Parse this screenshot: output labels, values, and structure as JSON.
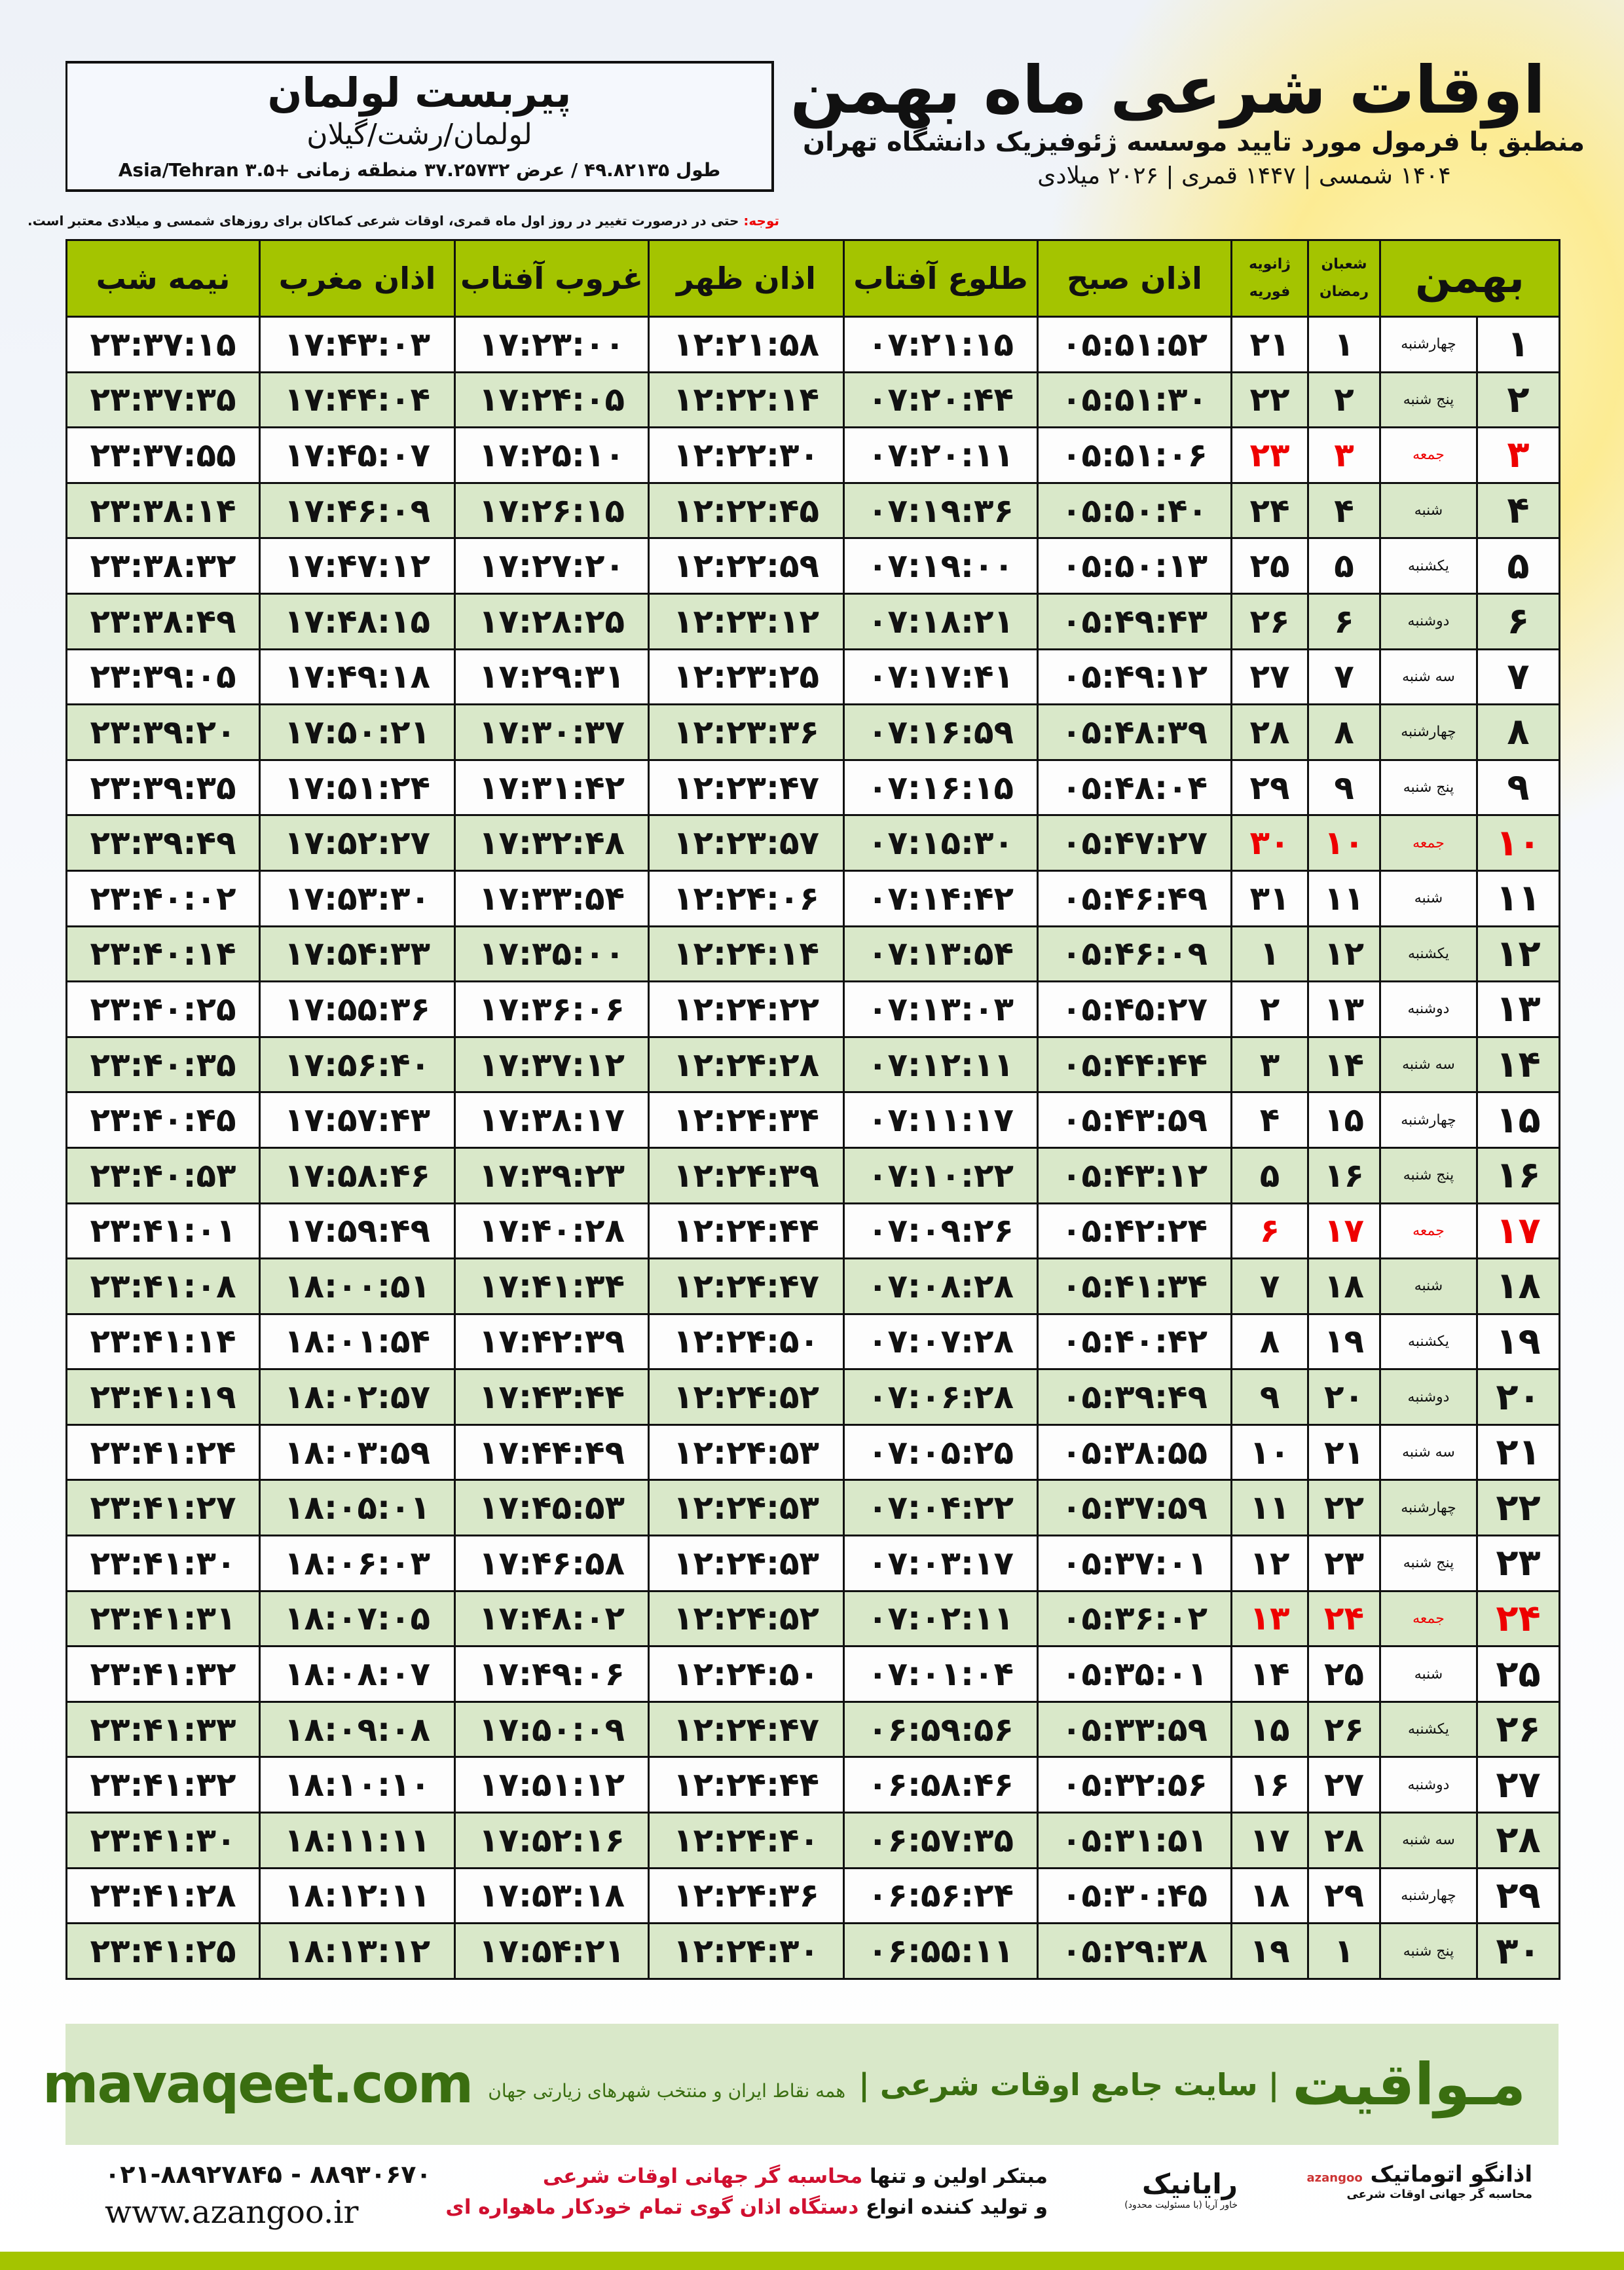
{
  "location": {
    "name": "پیربست لولمان",
    "path": "لولمان/رشت/گیلان",
    "coords": "طول ۴۹.۸۲۱۳۵ / عرض ۳۷.۲۵۷۳۲ منطقه زمانی +۳.۵ Asia/Tehran"
  },
  "title": {
    "main": "اوقات شرعی ماه بهمن",
    "subtitle": "منطبق با فرمول مورد تایید موسسه ژئوفیزیک دانشگاه تهران",
    "dates": "۱۴۰۴ شمسی | ۱۴۴۷ قمری | ۲۰۲۶ میلادی"
  },
  "note": {
    "label": "توجه:",
    "text": " حتی در درصورت تغییر در روز اول ماه قمری، اوقات شرعی کماکان برای روزهای شمسی و میلادی معتبر است."
  },
  "colors": {
    "header": "#a4c400",
    "row_alt": "#d9e8c9",
    "friday": "#e00000",
    "brand": "#3a6e10"
  },
  "table": {
    "headers": {
      "month": "بهمن",
      "hijri_top": "شعبان",
      "hijri_bottom": "رمضان",
      "greg_top": "ژانویه",
      "greg_bottom": "فوریه",
      "fajr": "اذان صبح",
      "sunrise": "طلوع آفتاب",
      "dhuhr": "اذان ظهر",
      "sunset": "غروب آفتاب",
      "maghrib": "اذان مغرب",
      "midnight": "نیمه شب"
    },
    "rows": [
      [
        "۱",
        "چهارشنبه",
        "۱",
        "۲۱",
        "۰۵:۵۱:۵۲",
        "۰۷:۲۱:۱۵",
        "۱۲:۲۱:۵۸",
        "۱۷:۲۳:۰۰",
        "۱۷:۴۳:۰۳",
        "۲۳:۳۷:۱۵"
      ],
      [
        "۲",
        "پنج شنبه",
        "۲",
        "۲۲",
        "۰۵:۵۱:۳۰",
        "۰۷:۲۰:۴۴",
        "۱۲:۲۲:۱۴",
        "۱۷:۲۴:۰۵",
        "۱۷:۴۴:۰۴",
        "۲۳:۳۷:۳۵"
      ],
      [
        "۳",
        "جمعه",
        "۳",
        "۲۳",
        "۰۵:۵۱:۰۶",
        "۰۷:۲۰:۱۱",
        "۱۲:۲۲:۳۰",
        "۱۷:۲۵:۱۰",
        "۱۷:۴۵:۰۷",
        "۲۳:۳۷:۵۵"
      ],
      [
        "۴",
        "شنبه",
        "۴",
        "۲۴",
        "۰۵:۵۰:۴۰",
        "۰۷:۱۹:۳۶",
        "۱۲:۲۲:۴۵",
        "۱۷:۲۶:۱۵",
        "۱۷:۴۶:۰۹",
        "۲۳:۳۸:۱۴"
      ],
      [
        "۵",
        "یکشنبه",
        "۵",
        "۲۵",
        "۰۵:۵۰:۱۳",
        "۰۷:۱۹:۰۰",
        "۱۲:۲۲:۵۹",
        "۱۷:۲۷:۲۰",
        "۱۷:۴۷:۱۲",
        "۲۳:۳۸:۳۲"
      ],
      [
        "۶",
        "دوشنبه",
        "۶",
        "۲۶",
        "۰۵:۴۹:۴۳",
        "۰۷:۱۸:۲۱",
        "۱۲:۲۳:۱۲",
        "۱۷:۲۸:۲۵",
        "۱۷:۴۸:۱۵",
        "۲۳:۳۸:۴۹"
      ],
      [
        "۷",
        "سه شنبه",
        "۷",
        "۲۷",
        "۰۵:۴۹:۱۲",
        "۰۷:۱۷:۴۱",
        "۱۲:۲۳:۲۵",
        "۱۷:۲۹:۳۱",
        "۱۷:۴۹:۱۸",
        "۲۳:۳۹:۰۵"
      ],
      [
        "۸",
        "چهارشنبه",
        "۸",
        "۲۸",
        "۰۵:۴۸:۳۹",
        "۰۷:۱۶:۵۹",
        "۱۲:۲۳:۳۶",
        "۱۷:۳۰:۳۷",
        "۱۷:۵۰:۲۱",
        "۲۳:۳۹:۲۰"
      ],
      [
        "۹",
        "پنج شنبه",
        "۹",
        "۲۹",
        "۰۵:۴۸:۰۴",
        "۰۷:۱۶:۱۵",
        "۱۲:۲۳:۴۷",
        "۱۷:۳۱:۴۲",
        "۱۷:۵۱:۲۴",
        "۲۳:۳۹:۳۵"
      ],
      [
        "۱۰",
        "جمعه",
        "۱۰",
        "۳۰",
        "۰۵:۴۷:۲۷",
        "۰۷:۱۵:۳۰",
        "۱۲:۲۳:۵۷",
        "۱۷:۳۲:۴۸",
        "۱۷:۵۲:۲۷",
        "۲۳:۳۹:۴۹"
      ],
      [
        "۱۱",
        "شنبه",
        "۱۱",
        "۳۱",
        "۰۵:۴۶:۴۹",
        "۰۷:۱۴:۴۲",
        "۱۲:۲۴:۰۶",
        "۱۷:۳۳:۵۴",
        "۱۷:۵۳:۳۰",
        "۲۳:۴۰:۰۲"
      ],
      [
        "۱۲",
        "یکشنبه",
        "۱۲",
        "۱",
        "۰۵:۴۶:۰۹",
        "۰۷:۱۳:۵۴",
        "۱۲:۲۴:۱۴",
        "۱۷:۳۵:۰۰",
        "۱۷:۵۴:۳۳",
        "۲۳:۴۰:۱۴"
      ],
      [
        "۱۳",
        "دوشنبه",
        "۱۳",
        "۲",
        "۰۵:۴۵:۲۷",
        "۰۷:۱۳:۰۳",
        "۱۲:۲۴:۲۲",
        "۱۷:۳۶:۰۶",
        "۱۷:۵۵:۳۶",
        "۲۳:۴۰:۲۵"
      ],
      [
        "۱۴",
        "سه شنبه",
        "۱۴",
        "۳",
        "۰۵:۴۴:۴۴",
        "۰۷:۱۲:۱۱",
        "۱۲:۲۴:۲۸",
        "۱۷:۳۷:۱۲",
        "۱۷:۵۶:۴۰",
        "۲۳:۴۰:۳۵"
      ],
      [
        "۱۵",
        "چهارشنبه",
        "۱۵",
        "۴",
        "۰۵:۴۳:۵۹",
        "۰۷:۱۱:۱۷",
        "۱۲:۲۴:۳۴",
        "۱۷:۳۸:۱۷",
        "۱۷:۵۷:۴۳",
        "۲۳:۴۰:۴۵"
      ],
      [
        "۱۶",
        "پنج شنبه",
        "۱۶",
        "۵",
        "۰۵:۴۳:۱۲",
        "۰۷:۱۰:۲۲",
        "۱۲:۲۴:۳۹",
        "۱۷:۳۹:۲۳",
        "۱۷:۵۸:۴۶",
        "۲۳:۴۰:۵۳"
      ],
      [
        "۱۷",
        "جمعه",
        "۱۷",
        "۶",
        "۰۵:۴۲:۲۴",
        "۰۷:۰۹:۲۶",
        "۱۲:۲۴:۴۴",
        "۱۷:۴۰:۲۸",
        "۱۷:۵۹:۴۹",
        "۲۳:۴۱:۰۱"
      ],
      [
        "۱۸",
        "شنبه",
        "۱۸",
        "۷",
        "۰۵:۴۱:۳۴",
        "۰۷:۰۸:۲۸",
        "۱۲:۲۴:۴۷",
        "۱۷:۴۱:۳۴",
        "۱۸:۰۰:۵۱",
        "۲۳:۴۱:۰۸"
      ],
      [
        "۱۹",
        "یکشنبه",
        "۱۹",
        "۸",
        "۰۵:۴۰:۴۲",
        "۰۷:۰۷:۲۸",
        "۱۲:۲۴:۵۰",
        "۱۷:۴۲:۳۹",
        "۱۸:۰۱:۵۴",
        "۲۳:۴۱:۱۴"
      ],
      [
        "۲۰",
        "دوشنبه",
        "۲۰",
        "۹",
        "۰۵:۳۹:۴۹",
        "۰۷:۰۶:۲۸",
        "۱۲:۲۴:۵۲",
        "۱۷:۴۳:۴۴",
        "۱۸:۰۲:۵۷",
        "۲۳:۴۱:۱۹"
      ],
      [
        "۲۱",
        "سه شنبه",
        "۲۱",
        "۱۰",
        "۰۵:۳۸:۵۵",
        "۰۷:۰۵:۲۵",
        "۱۲:۲۴:۵۳",
        "۱۷:۴۴:۴۹",
        "۱۸:۰۳:۵۹",
        "۲۳:۴۱:۲۴"
      ],
      [
        "۲۲",
        "چهارشنبه",
        "۲۲",
        "۱۱",
        "۰۵:۳۷:۵۹",
        "۰۷:۰۴:۲۲",
        "۱۲:۲۴:۵۳",
        "۱۷:۴۵:۵۳",
        "۱۸:۰۵:۰۱",
        "۲۳:۴۱:۲۷"
      ],
      [
        "۲۳",
        "پنج شنبه",
        "۲۳",
        "۱۲",
        "۰۵:۳۷:۰۱",
        "۰۷:۰۳:۱۷",
        "۱۲:۲۴:۵۳",
        "۱۷:۴۶:۵۸",
        "۱۸:۰۶:۰۳",
        "۲۳:۴۱:۳۰"
      ],
      [
        "۲۴",
        "جمعه",
        "۲۴",
        "۱۳",
        "۰۵:۳۶:۰۲",
        "۰۷:۰۲:۱۱",
        "۱۲:۲۴:۵۲",
        "۱۷:۴۸:۰۲",
        "۱۸:۰۷:۰۵",
        "۲۳:۴۱:۳۱"
      ],
      [
        "۲۵",
        "شنبه",
        "۲۵",
        "۱۴",
        "۰۵:۳۵:۰۱",
        "۰۷:۰۱:۰۴",
        "۱۲:۲۴:۵۰",
        "۱۷:۴۹:۰۶",
        "۱۸:۰۸:۰۷",
        "۲۳:۴۱:۳۲"
      ],
      [
        "۲۶",
        "یکشنبه",
        "۲۶",
        "۱۵",
        "۰۵:۳۳:۵۹",
        "۰۶:۵۹:۵۶",
        "۱۲:۲۴:۴۷",
        "۱۷:۵۰:۰۹",
        "۱۸:۰۹:۰۸",
        "۲۳:۴۱:۳۳"
      ],
      [
        "۲۷",
        "دوشنبه",
        "۲۷",
        "۱۶",
        "۰۵:۳۲:۵۶",
        "۰۶:۵۸:۴۶",
        "۱۲:۲۴:۴۴",
        "۱۷:۵۱:۱۲",
        "۱۸:۱۰:۱۰",
        "۲۳:۴۱:۳۲"
      ],
      [
        "۲۸",
        "سه شنبه",
        "۲۸",
        "۱۷",
        "۰۵:۳۱:۵۱",
        "۰۶:۵۷:۳۵",
        "۱۲:۲۴:۴۰",
        "۱۷:۵۲:۱۶",
        "۱۸:۱۱:۱۱",
        "۲۳:۴۱:۳۰"
      ],
      [
        "۲۹",
        "چهارشنبه",
        "۲۹",
        "۱۸",
        "۰۵:۳۰:۴۵",
        "۰۶:۵۶:۲۴",
        "۱۲:۲۴:۳۶",
        "۱۷:۵۳:۱۸",
        "۱۸:۱۲:۱۱",
        "۲۳:۴۱:۲۸"
      ],
      [
        "۳۰",
        "پنج شنبه",
        "۱",
        "۱۹",
        "۰۵:۲۹:۳۸",
        "۰۶:۵۵:۱۱",
        "۱۲:۲۴:۳۰",
        "۱۷:۵۴:۲۱",
        "۱۸:۱۳:۱۲",
        "۲۳:۴۱:۲۵"
      ]
    ]
  },
  "banner": {
    "brand": "مـواقیت",
    "slogan": "| سایت جامع اوقات شرعی |",
    "sub": "همه نقاط ایران و منتخب شهرهای زیارتی جهان",
    "url": "mavaqeet.com"
  },
  "footer": {
    "logo1": "اذانگو اتوماتیک",
    "logo1_sub": "محاسبه گر جهانی اوقات شرعی",
    "logo1_brand": "azangoo",
    "logo2": "رایانیک",
    "logo2_sub": "خاور آریا (با مسئولیت محدود)",
    "line1a": "مبتکر اولین و تنها ",
    "line1b": "محاسبه گر جهانی اوقات شرعی",
    "line2a": "و تولید کننده انواع ",
    "line2b": "دستگاه اذان گوی تمام خودکار ماهواره ای",
    "phone": "۰۲۱-۸۸۹۲۷۸۴۵ - ۸۸۹۳۰۶۷۰",
    "web": "www.azangoo.ir"
  }
}
